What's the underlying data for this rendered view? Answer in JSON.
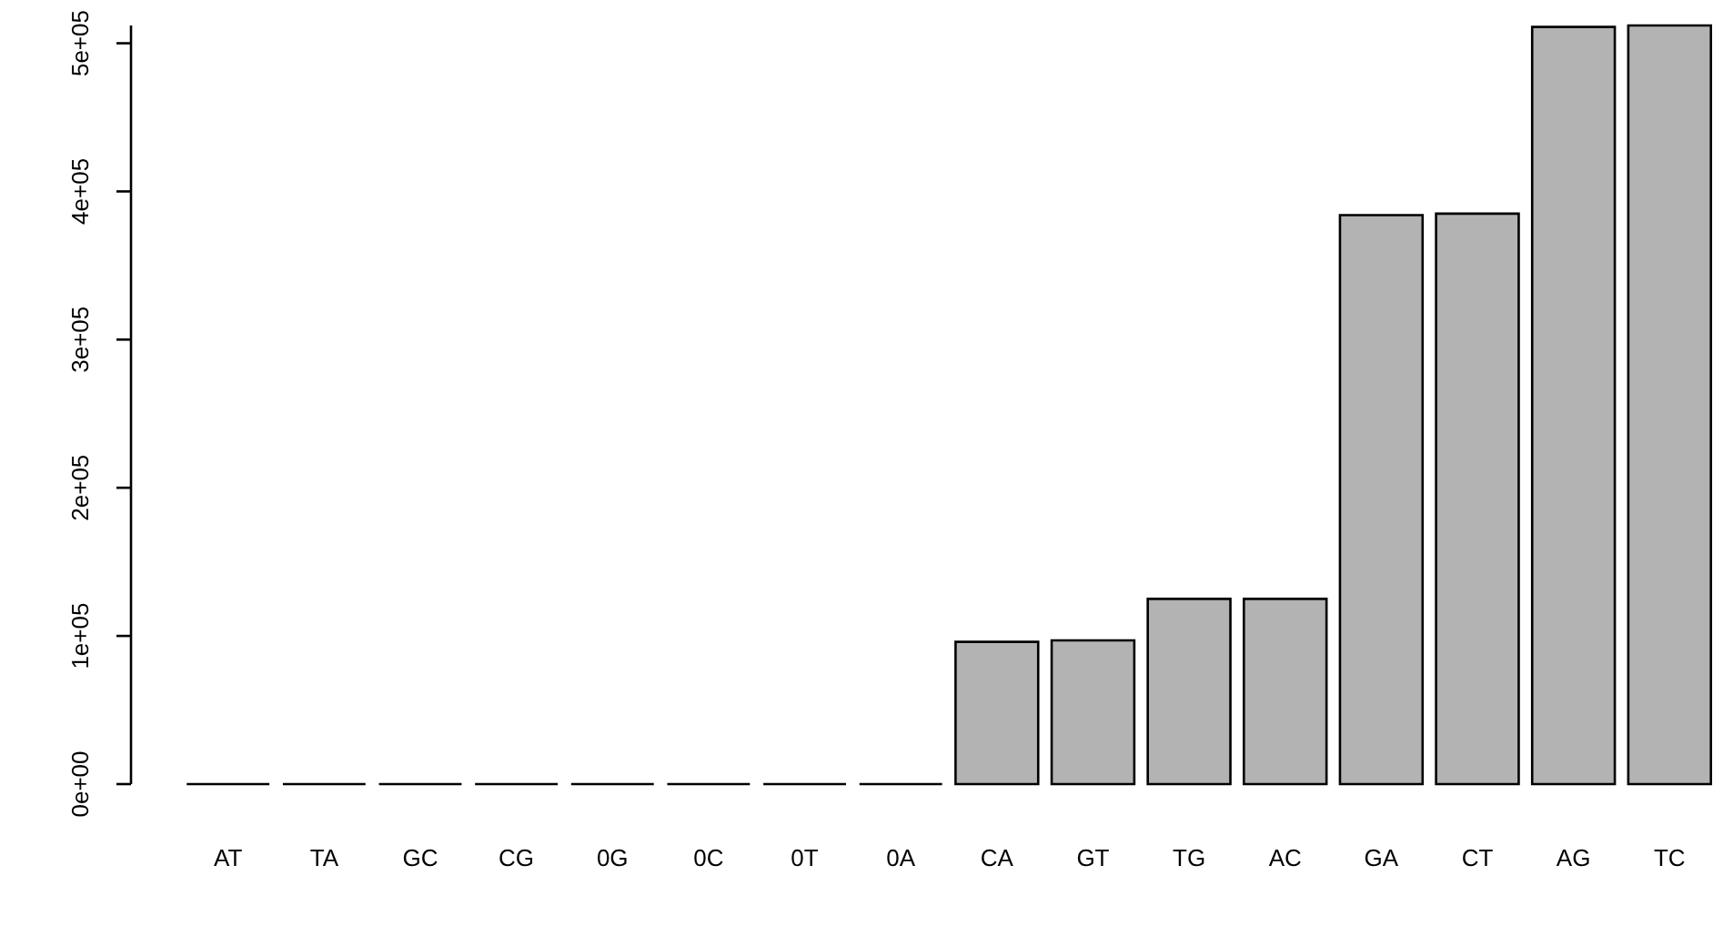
{
  "chart_data": {
    "type": "bar",
    "categories": [
      "AT",
      "TA",
      "GC",
      "CG",
      "0G",
      "0C",
      "0T",
      "0A",
      "CA",
      "GT",
      "TG",
      "AC",
      "GA",
      "CT",
      "AG",
      "TC"
    ],
    "values": [
      0,
      0,
      0,
      0,
      0,
      0,
      0,
      0,
      96000,
      97000,
      125000,
      125000,
      384000,
      385000,
      511000,
      512000
    ],
    "color": "#b3b3b3",
    "ylim": [
      0,
      512000
    ],
    "yticks": [
      {
        "value": 0,
        "label": "0e+00"
      },
      {
        "value": 100000,
        "label": "1e+05"
      },
      {
        "value": 200000,
        "label": "2e+05"
      },
      {
        "value": 300000,
        "label": "3e+05"
      },
      {
        "value": 400000,
        "label": "4e+05"
      },
      {
        "value": 500000,
        "label": "5e+05"
      }
    ],
    "grid": false
  }
}
